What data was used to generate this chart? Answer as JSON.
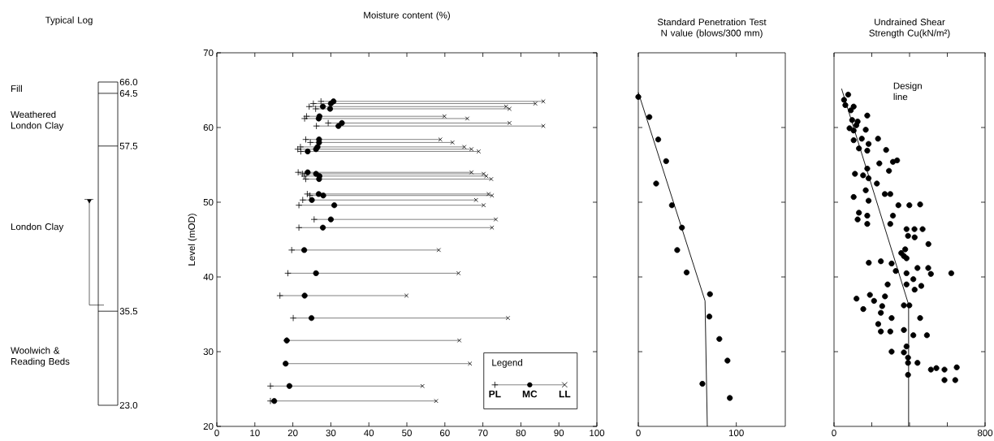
{
  "chart_data": [
    {
      "type": "other",
      "title": "Typical Log",
      "annotations": [
        "Fill",
        "Weathered London Clay",
        "London Clay",
        "Woolwich & Reading Beds",
        "66.0",
        "64.5",
        "57.5",
        "35.5",
        "23.0"
      ]
    },
    {
      "type": "scatter",
      "title": "Moisture content (%)",
      "ylabel": "Level (mOD)",
      "xlim": [
        0,
        100
      ],
      "ylim": [
        20,
        70
      ],
      "xticks": [
        0,
        10,
        20,
        30,
        40,
        50,
        60,
        70,
        80,
        90,
        100
      ],
      "yticks": [
        20,
        30,
        40,
        50,
        60,
        70
      ],
      "legend": "bottom right",
      "legend_title": "Legend",
      "series": [
        {
          "name": "PL",
          "color": "#000000",
          "marker": "plus",
          "x": [
            27.4,
            25.4,
            24.3,
            26.0,
            23.6,
            23.1,
            29.3,
            26.2,
            23.4,
            24.6,
            22.0,
            21.3,
            22.1,
            21.4,
            22.5,
            23.0,
            23.4,
            23.8,
            24.5,
            22.6,
            21.6,
            25.6,
            21.6,
            19.7,
            18.7,
            16.6,
            20.1,
            18.4,
            null,
            14.1,
            14.1
          ],
          "values": [
            63.5,
            63.2,
            62.8,
            62.5,
            61.5,
            61.2,
            60.6,
            60.2,
            58.4,
            58.0,
            57.4,
            57.1,
            56.8,
            54.0,
            53.8,
            53.5,
            53.1,
            51.1,
            50.9,
            50.3,
            49.6,
            47.7,
            46.6,
            43.6,
            40.5,
            37.5,
            34.5,
            31.5,
            null,
            25.4,
            23.4
          ]
        },
        {
          "name": "MC",
          "color": "#000000",
          "marker": "circle",
          "x": [
            30.7,
            30.0,
            27.9,
            29.8,
            27.0,
            26.8,
            32.9,
            32.0,
            26.9,
            26.9,
            26.5,
            26.1,
            23.9,
            23.9,
            26.1,
            27.0,
            26.9,
            26.8,
            28.0,
            25.0,
            30.9,
            30.0,
            27.9,
            23.0,
            26.1,
            23.1,
            24.9,
            18.4,
            18.1,
            19.1,
            15.1
          ],
          "values": [
            63.5,
            63.2,
            62.8,
            62.5,
            61.5,
            61.2,
            60.6,
            60.2,
            58.4,
            58.0,
            57.4,
            57.1,
            56.8,
            54.0,
            53.8,
            53.5,
            53.1,
            51.1,
            50.9,
            50.3,
            49.6,
            47.7,
            46.6,
            43.6,
            40.5,
            37.5,
            34.5,
            31.5,
            28.4,
            25.4,
            23.4
          ],
          "xerrors": [
            [
              27.4,
              85.9
            ],
            [
              25.4,
              83.8
            ],
            [
              24.3,
              76.1
            ],
            [
              26.0,
              77.0
            ],
            [
              23.6,
              59.9
            ],
            [
              23.1,
              65.9
            ],
            [
              29.3,
              77.0
            ],
            [
              26.2,
              85.9
            ],
            [
              23.4,
              58.8
            ],
            [
              24.6,
              62.0
            ],
            [
              22.0,
              65.1
            ],
            [
              21.3,
              67.0
            ],
            [
              22.1,
              68.9
            ],
            [
              21.4,
              67.0
            ],
            [
              22.5,
              70.2
            ],
            [
              23.0,
              70.9
            ],
            [
              23.4,
              72.2
            ],
            [
              23.8,
              71.5
            ],
            [
              24.5,
              72.4
            ],
            [
              22.6,
              68.2
            ],
            [
              21.6,
              70.2
            ],
            [
              25.6,
              73.4
            ],
            [
              21.6,
              72.4
            ],
            [
              19.7,
              58.4
            ],
            [
              18.7,
              63.6
            ],
            [
              16.6,
              49.9
            ],
            [
              20.1,
              76.6
            ],
            [
              18.4,
              63.8
            ],
            [
              18.1,
              66.6
            ],
            [
              14.1,
              54.1
            ],
            [
              14.1,
              57.7
            ]
          ]
        },
        {
          "name": "LL",
          "color": "#000000",
          "marker": "cross",
          "x": [
            85.9,
            83.8,
            76.1,
            77.0,
            59.9,
            65.9,
            77.0,
            85.9,
            58.8,
            62.0,
            65.1,
            67.0,
            68.9,
            67.0,
            70.2,
            70.9,
            72.2,
            71.5,
            72.4,
            68.2,
            70.2,
            73.4,
            72.4,
            58.4,
            63.6,
            49.9,
            76.6,
            63.8,
            66.6,
            54.1,
            57.7
          ],
          "values": [
            63.5,
            63.2,
            62.8,
            62.5,
            61.5,
            61.2,
            60.6,
            60.2,
            58.4,
            58.0,
            57.4,
            57.1,
            56.8,
            54.0,
            53.8,
            53.5,
            53.1,
            51.1,
            50.9,
            50.3,
            49.6,
            47.7,
            46.6,
            43.6,
            40.5,
            37.5,
            34.5,
            31.5,
            28.4,
            25.4,
            23.4
          ]
        }
      ]
    },
    {
      "type": "scatter",
      "title": "Standard Penetration Test N value (blows/300 mm)",
      "xlim": [
        0,
        150
      ],
      "ylim": [
        20,
        70
      ],
      "xticks": [
        0,
        100
      ],
      "yticks": [
        {
          "value": 30,
          "label": null
        },
        {
          "value": 40,
          "label": null
        },
        {
          "value": 50,
          "label": null
        },
        {
          "value": 60,
          "label": null
        }
      ],
      "tick_labels": "x",
      "series": [
        {
          "color": "#000000",
          "marker": "circle",
          "x": [
            0,
            11.3,
            20.3,
            28.4,
            18.2,
            34.3,
            44.5,
            39.7,
            49.3,
            73.1,
            72.5,
            82.7,
            91.0,
            65.4,
            93.4
          ],
          "values": [
            64.1,
            61.4,
            58.4,
            55.5,
            52.5,
            49.6,
            46.6,
            43.6,
            40.6,
            37.7,
            34.7,
            31.7,
            28.8,
            25.7,
            23.8
          ]
        },
        {
          "type": "line",
          "color": "#000000",
          "line_style": "solid",
          "x": [
            0,
            68.1,
            70.4
          ],
          "values": [
            64.7,
            36.8,
            20
          ]
        }
      ]
    },
    {
      "type": "scatter",
      "title": "Undrained Shear Strength Cu(kN/m²)",
      "xlim": [
        0,
        800
      ],
      "ylim": [
        20,
        70
      ],
      "xticks": [
        0,
        {
          "value": 200,
          "label": null
        },
        {
          "value": 400,
          "label": null
        },
        {
          "value": 600,
          "label": null
        },
        800
      ],
      "yticks": [
        {
          "value": 30,
          "label": null
        },
        {
          "value": 40,
          "label": null
        },
        {
          "value": 50,
          "label": null
        },
        {
          "value": 60,
          "label": null
        }
      ],
      "tick_labels": "x",
      "annotations": [
        "Design line"
      ],
      "series": [
        {
          "color": "#000000",
          "marker": "circle",
          "x": [
            75,
            53,
            60,
            104,
            89,
            176,
            96,
            125,
            118,
            82,
            168,
            104,
            233,
            104,
            147,
            132,
            176,
            276,
            183,
            240,
            312,
            334,
            291,
            176,
            111,
            154,
            183,
            227,
            168,
            104,
            183,
            269,
            298,
            341,
            399,
            456,
            132,
            125,
            176,
            176,
            312,
            298,
            384,
            426,
            469,
            392,
            427,
            500,
            377,
            356,
            384,
            184,
            248,
            305,
            370,
            327,
            384,
            442,
            499,
            513,
            621,
            420,
            384,
            462,
            427,
            284,
            119,
            190,
            212,
            270,
            155,
            255,
            248,
            370,
            399,
            305,
            456,
            234,
            248,
            298,
            370,
            420,
            492,
            305,
            384,
            370,
            392,
            442,
            392,
            513,
            542,
            585,
            650,
            585,
            642,
            392
          ],
          "values": [
            64.4,
            63.7,
            63.0,
            62.8,
            62.3,
            61.6,
            61.0,
            60.8,
            60.3,
            59.9,
            59.7,
            59.6,
            58.5,
            58.3,
            58.5,
            57.2,
            56.9,
            57.0,
            57.8,
            55.2,
            55.4,
            55.6,
            54.2,
            54.5,
            53.8,
            53.6,
            53.2,
            52.5,
            51.6,
            50.7,
            50.2,
            51.1,
            51.1,
            49.6,
            49.6,
            49.7,
            48.6,
            47.7,
            48.2,
            47.1,
            48.2,
            47.1,
            46.4,
            46.4,
            46.4,
            45.5,
            45.3,
            44.4,
            43.7,
            43.2,
            42.5,
            41.9,
            42.1,
            41.8,
            42.8,
            40.8,
            40.5,
            41.2,
            41.2,
            40.4,
            40.5,
            39.7,
            39.0,
            38.8,
            38.3,
            39.0,
            37.1,
            37.6,
            36.8,
            37.4,
            35.7,
            36.1,
            35.2,
            36.2,
            36.2,
            34.5,
            34.5,
            33.7,
            32.7,
            32.7,
            32.9,
            32.2,
            32.2,
            30.0,
            30.7,
            29.9,
            29.2,
            28.5,
            28.5,
            27.6,
            27.8,
            27.6,
            27.9,
            26.2,
            26.2,
            26.9
          ]
        },
        {
          "type": "line",
          "color": "#000000",
          "line_style": "solid",
          "x": [
            40,
            395,
            395
          ],
          "values": [
            65.2,
            36.3,
            20
          ]
        }
      ]
    }
  ]
}
